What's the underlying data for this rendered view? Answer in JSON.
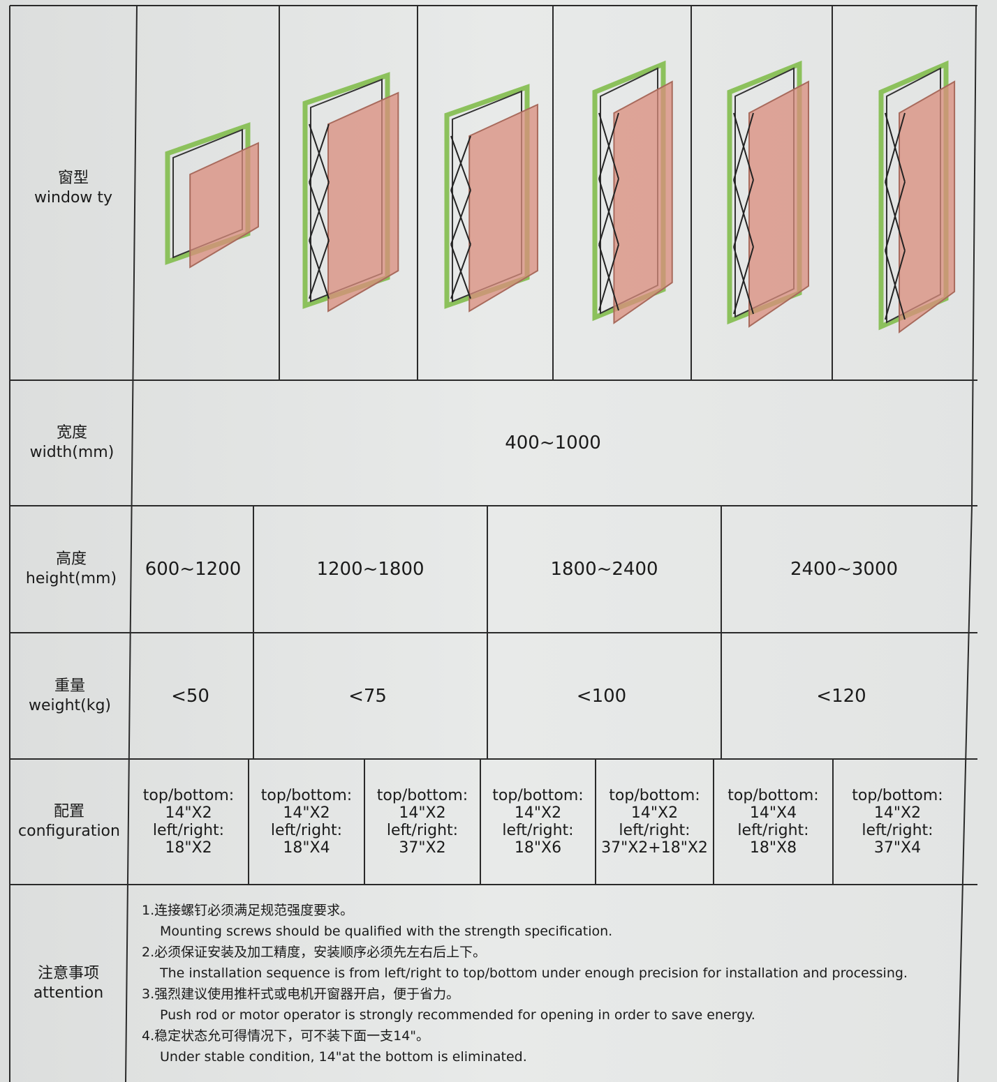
{
  "window_type": {
    "label_cn": "窗型",
    "label_en": "window ty"
  },
  "width": {
    "label_cn": "宽度",
    "label_en": "width(mm)",
    "value": "400~1000"
  },
  "height": {
    "label_cn": "高度",
    "label_en": "height(mm)",
    "values": [
      "600~1200",
      "1200~1800",
      "1800~2400",
      "2400~3000"
    ]
  },
  "weight": {
    "label_cn": "重量",
    "label_en": "weight(kg)",
    "values": [
      "<50",
      "<75",
      "<100",
      "<120"
    ]
  },
  "configuration": {
    "label_cn": "配置",
    "label_en": "configuration",
    "values": [
      [
        "top/bottom:",
        "14\"X2",
        "left/right:",
        "18\"X2"
      ],
      [
        "top/bottom:",
        "14\"X2",
        "left/right:",
        "18\"X4"
      ],
      [
        "top/bottom:",
        "14\"X2",
        "left/right:",
        "37\"X2"
      ],
      [
        "top/bottom:",
        "14\"X2",
        "left/right:",
        "18\"X6"
      ],
      [
        "top/bottom:",
        "14\"X2",
        "left/right:",
        "37\"X2+18\"X2"
      ],
      [
        "top/bottom:",
        "14\"X4",
        "left/right:",
        "18\"X8"
      ],
      [
        "top/bottom:",
        "14\"X2",
        "left/right:",
        "37\"X4"
      ]
    ]
  },
  "attention": {
    "label_cn": "注意事项",
    "label_en": "attention",
    "items": [
      {
        "cn": "1.连接螺钉必须满足规范强度要求。",
        "en": "Mounting screws should be qualified with the strength specification."
      },
      {
        "cn": "2.必须保证安装及加工精度，安装顺序必须先左右后上下。",
        "en": "The installation sequence is from left/right to top/bottom under enough precision for installation and processing."
      },
      {
        "cn": "3.强烈建议使用推杆式或电机开窗器开启，便于省力。",
        "en": "Push rod or motor operator is strongly recommended for opening in order to save energy."
      },
      {
        "cn": "4.稳定状态允可得情况下，可不装下面一支14\"。",
        "en": "Under stable condition, 14\"at the bottom is eliminated."
      }
    ]
  }
}
